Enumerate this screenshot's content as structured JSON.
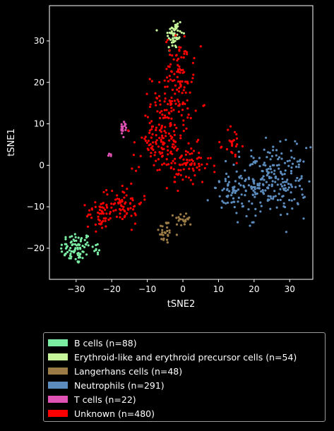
{
  "chart_data": {
    "type": "scatter",
    "xlabel": "tSNE2",
    "ylabel": "tSNE1",
    "xlim": [
      -37.5,
      36.5
    ],
    "ylim": [
      -27.5,
      38.5
    ],
    "xticks": [
      -30,
      -20,
      -10,
      0,
      10,
      20,
      30
    ],
    "yticks": [
      -20,
      -10,
      0,
      10,
      20,
      30
    ],
    "grid": false,
    "legend_position": "bottom-outside",
    "series": [
      {
        "name": "B cells (n=88)",
        "color": "#7aeda3",
        "n": 88,
        "clusters": [
          {
            "cx": -30,
            "cy": -20,
            "sx": 2.2,
            "sy": 2.0,
            "w": 0.9
          },
          {
            "cx": -24.5,
            "cy": -20,
            "sx": 0.8,
            "sy": 0.6,
            "w": 0.1
          }
        ]
      },
      {
        "name": "Erythroid-like and erythroid precursor cells (n=54)",
        "color": "#c7f59a",
        "n": 54,
        "clusters": [
          {
            "cx": -2.5,
            "cy": 31.5,
            "sx": 1.2,
            "sy": 2.2,
            "w": 1
          }
        ]
      },
      {
        "name": "Langerhans cells (n=48)",
        "color": "#9b7b46",
        "n": 48,
        "clusters": [
          {
            "cx": -5,
            "cy": -16,
            "sx": 0.9,
            "sy": 1.5,
            "w": 0.55
          },
          {
            "cx": 0.3,
            "cy": -13,
            "sx": 1.3,
            "sy": 0.9,
            "w": 0.45
          }
        ]
      },
      {
        "name": "Neutrophils (n=291)",
        "color": "#5b8cbd",
        "n": 291,
        "clusters": [
          {
            "cx": 24,
            "cy": -4,
            "sx": 5.5,
            "sy": 4.2,
            "w": 0.88
          },
          {
            "cx": 14,
            "cy": -7,
            "sx": 3.0,
            "sy": 2.0,
            "w": 0.12
          }
        ]
      },
      {
        "name": "T cells (n=22)",
        "color": "#e052b4",
        "n": 22,
        "clusters": [
          {
            "cx": -16.5,
            "cy": 8.5,
            "sx": 0.7,
            "sy": 1.0,
            "w": 0.78
          },
          {
            "cx": -20.5,
            "cy": 2.6,
            "sx": 0.3,
            "sy": 0.4,
            "w": 0.22
          }
        ]
      },
      {
        "name": "Unknown (n=480)",
        "color": "#ff0000",
        "n": 480,
        "clusters": [
          {
            "cx": -1,
            "cy": 24,
            "sx": 2.0,
            "sy": 3.5,
            "w": 0.13
          },
          {
            "cx": -3,
            "cy": 15,
            "sx": 3.0,
            "sy": 3.5,
            "w": 0.2
          },
          {
            "cx": -7,
            "cy": 5,
            "sx": 3.5,
            "sy": 3.0,
            "w": 0.2
          },
          {
            "cx": 1,
            "cy": 0,
            "sx": 3.5,
            "sy": 2.5,
            "w": 0.17
          },
          {
            "cx": -17,
            "cy": -9,
            "sx": 2.8,
            "sy": 2.5,
            "w": 0.15
          },
          {
            "cx": -23,
            "cy": -12,
            "sx": 2.0,
            "sy": 1.8,
            "w": 0.1
          },
          {
            "cx": 14,
            "cy": 5,
            "sx": 1.2,
            "sy": 2.5,
            "w": 0.05
          }
        ]
      }
    ]
  }
}
